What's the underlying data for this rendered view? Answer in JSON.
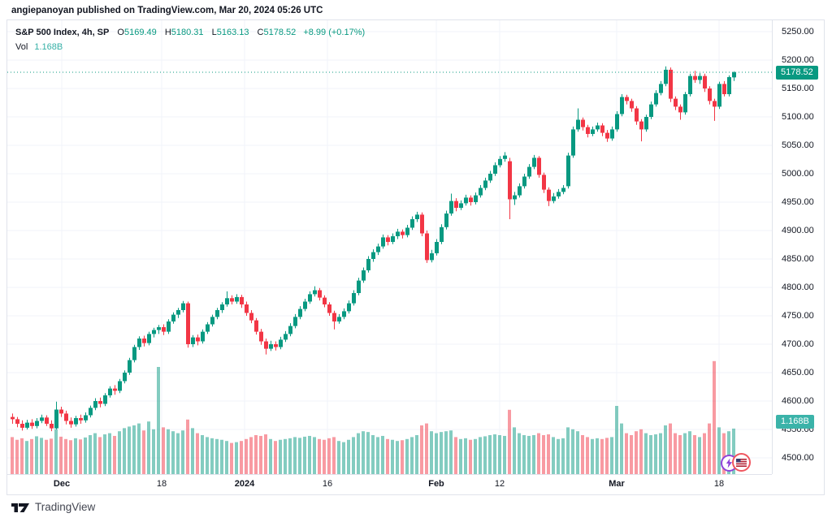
{
  "attribution": "angiepanoyan published on TradingView.com, Mar 20, 2024 05:26 UTC",
  "legend": {
    "title": "S&P 500 Index, 4h, SP",
    "o_label": "O",
    "o_value": "5169.49",
    "h_label": "H",
    "h_value": "5180.31",
    "l_label": "L",
    "l_value": "5163.13",
    "c_label": "C",
    "c_value": "5178.52",
    "change": "+8.99 (+0.17%)",
    "vol_label": "Vol",
    "vol_value": "1.168B"
  },
  "badges": {
    "last_price": "5178.52",
    "volume": "1.168B"
  },
  "price_axis_ticks": [
    {
      "label": "5250.00",
      "value": 5250
    },
    {
      "label": "5200.00",
      "value": 5200
    },
    {
      "label": "5150.00",
      "value": 5150
    },
    {
      "label": "5100.00",
      "value": 5100
    },
    {
      "label": "5050.00",
      "value": 5050
    },
    {
      "label": "5000.00",
      "value": 5000
    },
    {
      "label": "4950.00",
      "value": 4950
    },
    {
      "label": "4900.00",
      "value": 4900
    },
    {
      "label": "4850.00",
      "value": 4850
    },
    {
      "label": "4800.00",
      "value": 4800
    },
    {
      "label": "4750.00",
      "value": 4750
    },
    {
      "label": "4700.00",
      "value": 4700
    },
    {
      "label": "4650.00",
      "value": 4650
    },
    {
      "label": "4600.00",
      "value": 4600
    },
    {
      "label": "4550.00",
      "value": 4550
    },
    {
      "label": "4500.00",
      "value": 4500
    }
  ],
  "time_axis_ticks": [
    {
      "label": "Dec",
      "x": 75,
      "bold": true
    },
    {
      "label": "18",
      "x": 198,
      "bold": false
    },
    {
      "label": "2024",
      "x": 300,
      "bold": true
    },
    {
      "label": "16",
      "x": 402,
      "bold": false
    },
    {
      "label": "Feb",
      "x": 536,
      "bold": true
    },
    {
      "label": "12",
      "x": 614,
      "bold": false
    },
    {
      "label": "Mar",
      "x": 758,
      "bold": true
    },
    {
      "label": "18",
      "x": 884,
      "bold": false
    }
  ],
  "branding": {
    "logo_text": "TradingView"
  },
  "event_markers": [
    {
      "id": "idea-lightning",
      "color": "#8e44d8"
    },
    {
      "id": "us-economic-event",
      "color": "#f0565f"
    }
  ],
  "colors": {
    "up": "#089981",
    "down": "#f23645",
    "vol_up": "rgba(8,153,129,0.5)",
    "vol_down": "rgba(242,54,69,0.5)",
    "grid": "#f0f3fa",
    "border": "#e0e3eb",
    "text": "#131722",
    "vol_accent": "#35b0a6",
    "price_badge": "#089981",
    "vol_badge": "#3bb3a9",
    "last_price_line": "#089981"
  },
  "chart_data": {
    "type": "candlestick+volume",
    "symbol": "S&P 500 Index",
    "interval": "4h",
    "exchange": "SP",
    "title": "S&P 500 Index, 4h, SP",
    "x_range": "late Nov 2023 - Mar 19 2024",
    "price_axis_range": [
      4470,
      5265
    ],
    "last_close": 5178.52,
    "last_volume_b": 1.168,
    "grid": true,
    "candles_format": [
      "open",
      "high",
      "low",
      "close",
      "volume_billions"
    ],
    "candles": [
      [
        4572,
        4578,
        4560,
        4568,
        0.95
      ],
      [
        4568,
        4572,
        4554,
        4560,
        0.88
      ],
      [
        4560,
        4566,
        4548,
        4553,
        0.92
      ],
      [
        4553,
        4567,
        4550,
        4562,
        0.85
      ],
      [
        4562,
        4568,
        4551,
        4556,
        0.9
      ],
      [
        4556,
        4570,
        4552,
        4565,
        0.97
      ],
      [
        4565,
        4576,
        4561,
        4571,
        0.93
      ],
      [
        4571,
        4575,
        4556,
        4560,
        0.88
      ],
      [
        4560,
        4566,
        4547,
        4552,
        0.91
      ],
      [
        4552,
        4599,
        4550,
        4585,
        1.15
      ],
      [
        4585,
        4590,
        4572,
        4578,
        0.96
      ],
      [
        4578,
        4583,
        4559,
        4565,
        0.9
      ],
      [
        4565,
        4571,
        4553,
        4559,
        0.87
      ],
      [
        4559,
        4574,
        4555,
        4570,
        0.92
      ],
      [
        4570,
        4576,
        4560,
        4566,
        0.89
      ],
      [
        4566,
        4580,
        4562,
        4575,
        0.94
      ],
      [
        4575,
        4592,
        4571,
        4588,
        1.0
      ],
      [
        4588,
        4605,
        4584,
        4600,
        1.05
      ],
      [
        4600,
        4606,
        4589,
        4595,
        0.95
      ],
      [
        4595,
        4614,
        4591,
        4610,
        1.02
      ],
      [
        4610,
        4626,
        4606,
        4622,
        1.05
      ],
      [
        4622,
        4628,
        4611,
        4618,
        0.98
      ],
      [
        4618,
        4639,
        4614,
        4635,
        1.1
      ],
      [
        4635,
        4654,
        4631,
        4650,
        1.18
      ],
      [
        4650,
        4676,
        4646,
        4672,
        1.22
      ],
      [
        4672,
        4699,
        4668,
        4695,
        1.25
      ],
      [
        4695,
        4714,
        4690,
        4710,
        1.3
      ],
      [
        4710,
        4715,
        4696,
        4702,
        1.12
      ],
      [
        4702,
        4722,
        4698,
        4718,
        1.35
      ],
      [
        4718,
        4729,
        4712,
        4725,
        1.15
      ],
      [
        4725,
        4734,
        4718,
        4730,
        2.75
      ],
      [
        4730,
        4735,
        4716,
        4722,
        1.2
      ],
      [
        4722,
        4744,
        4718,
        4740,
        1.15
      ],
      [
        4740,
        4756,
        4736,
        4752,
        1.1
      ],
      [
        4752,
        4764,
        4746,
        4760,
        1.05
      ],
      [
        4760,
        4776,
        4756,
        4772,
        1.12
      ],
      [
        4772,
        4775,
        4694,
        4700,
        1.4
      ],
      [
        4700,
        4716,
        4695,
        4712,
        1.18
      ],
      [
        4712,
        4717,
        4698,
        4705,
        1.05
      ],
      [
        4705,
        4726,
        4701,
        4722,
        1.0
      ],
      [
        4722,
        4739,
        4718,
        4735,
        0.95
      ],
      [
        4735,
        4752,
        4731,
        4748,
        0.92
      ],
      [
        4748,
        4764,
        4744,
        4760,
        0.9
      ],
      [
        4760,
        4774,
        4755,
        4770,
        0.88
      ],
      [
        4770,
        4793,
        4766,
        4781,
        0.85
      ],
      [
        4781,
        4786,
        4770,
        4775,
        0.8
      ],
      [
        4775,
        4788,
        4771,
        4783,
        0.82
      ],
      [
        4783,
        4787,
        4764,
        4770,
        0.85
      ],
      [
        4770,
        4775,
        4750,
        4755,
        0.9
      ],
      [
        4755,
        4760,
        4737,
        4742,
        0.95
      ],
      [
        4742,
        4746,
        4717,
        4722,
        1.0
      ],
      [
        4722,
        4727,
        4699,
        4705,
        0.98
      ],
      [
        4705,
        4710,
        4682,
        4692,
        1.02
      ],
      [
        4692,
        4706,
        4688,
        4700,
        0.9
      ],
      [
        4700,
        4705,
        4689,
        4695,
        0.85
      ],
      [
        4695,
        4713,
        4691,
        4708,
        0.88
      ],
      [
        4708,
        4723,
        4704,
        4718,
        0.9
      ],
      [
        4718,
        4737,
        4714,
        4732,
        0.92
      ],
      [
        4732,
        4753,
        4728,
        4748,
        0.95
      ],
      [
        4748,
        4767,
        4744,
        4762,
        0.93
      ],
      [
        4762,
        4780,
        4758,
        4775,
        0.96
      ],
      [
        4775,
        4793,
        4771,
        4788,
        0.98
      ],
      [
        4788,
        4802,
        4784,
        4795,
        0.95
      ],
      [
        4795,
        4799,
        4777,
        4782,
        0.9
      ],
      [
        4782,
        4786,
        4765,
        4770,
        0.88
      ],
      [
        4770,
        4774,
        4750,
        4755,
        0.92
      ],
      [
        4755,
        4759,
        4726,
        4740,
        0.95
      ],
      [
        4740,
        4753,
        4736,
        4748,
        0.85
      ],
      [
        4748,
        4763,
        4744,
        4758,
        0.82
      ],
      [
        4758,
        4777,
        4754,
        4772,
        0.88
      ],
      [
        4772,
        4795,
        4768,
        4790,
        0.95
      ],
      [
        4790,
        4817,
        4786,
        4812,
        1.05
      ],
      [
        4812,
        4835,
        4808,
        4830,
        1.1
      ],
      [
        4830,
        4855,
        4826,
        4850,
        1.08
      ],
      [
        4850,
        4867,
        4845,
        4862,
        1.0
      ],
      [
        4862,
        4877,
        4857,
        4872,
        0.95
      ],
      [
        4872,
        4893,
        4868,
        4888,
        0.98
      ],
      [
        4888,
        4892,
        4874,
        4880,
        0.9
      ],
      [
        4880,
        4895,
        4876,
        4890,
        0.88
      ],
      [
        4890,
        4903,
        4885,
        4898,
        0.85
      ],
      [
        4898,
        4902,
        4886,
        4892,
        0.87
      ],
      [
        4892,
        4910,
        4888,
        4905,
        0.9
      ],
      [
        4905,
        4925,
        4901,
        4920,
        0.95
      ],
      [
        4920,
        4933,
        4915,
        4928,
        1.0
      ],
      [
        4928,
        4932,
        4890,
        4895,
        1.25
      ],
      [
        4895,
        4900,
        4843,
        4848,
        1.3
      ],
      [
        4848,
        4866,
        4844,
        4860,
        1.1
      ],
      [
        4860,
        4885,
        4856,
        4880,
        1.05
      ],
      [
        4880,
        4911,
        4876,
        4906,
        1.08
      ],
      [
        4906,
        4935,
        4902,
        4930,
        1.1
      ],
      [
        4930,
        4965,
        4926,
        4952,
        1.12
      ],
      [
        4952,
        4957,
        4934,
        4940,
        0.95
      ],
      [
        4940,
        4953,
        4936,
        4948,
        0.9
      ],
      [
        4948,
        4963,
        4944,
        4958,
        0.92
      ],
      [
        4958,
        4962,
        4944,
        4950,
        0.88
      ],
      [
        4950,
        4967,
        4946,
        4962,
        0.9
      ],
      [
        4962,
        4980,
        4958,
        4975,
        0.95
      ],
      [
        4975,
        4993,
        4971,
        4988,
        0.97
      ],
      [
        4988,
        5005,
        4984,
        5000,
        1.0
      ],
      [
        5000,
        5020,
        4996,
        5015,
        1.02
      ],
      [
        5015,
        5031,
        5011,
        5026,
        1.0
      ],
      [
        5026,
        5038,
        5021,
        5032,
        0.98
      ],
      [
        5022,
        5028,
        4920,
        4955,
        1.65
      ],
      [
        4955,
        4968,
        4945,
        4962,
        1.2
      ],
      [
        4962,
        4983,
        4958,
        4978,
        1.05
      ],
      [
        4978,
        5000,
        4974,
        4995,
        1.0
      ],
      [
        4995,
        5017,
        4991,
        5012,
        0.98
      ],
      [
        5012,
        5033,
        5008,
        5028,
        1.0
      ],
      [
        5028,
        5031,
        4993,
        4998,
        1.05
      ],
      [
        4998,
        5002,
        4966,
        4972,
        1.0
      ],
      [
        4972,
        4976,
        4943,
        4952,
        1.02
      ],
      [
        4952,
        4966,
        4948,
        4960,
        0.95
      ],
      [
        4960,
        4973,
        4956,
        4968,
        0.9
      ],
      [
        4968,
        4980,
        4964,
        4975,
        0.92
      ],
      [
        4978,
        5037,
        4974,
        5032,
        1.2
      ],
      [
        5032,
        5083,
        5028,
        5078,
        1.15
      ],
      [
        5078,
        5115,
        5074,
        5095,
        1.1
      ],
      [
        5095,
        5099,
        5076,
        5082,
        1.0
      ],
      [
        5082,
        5086,
        5064,
        5070,
        0.95
      ],
      [
        5070,
        5083,
        5066,
        5078,
        0.9
      ],
      [
        5078,
        5090,
        5074,
        5085,
        0.92
      ],
      [
        5085,
        5089,
        5066,
        5072,
        0.9
      ],
      [
        5072,
        5077,
        5056,
        5062,
        0.93
      ],
      [
        5062,
        5083,
        5058,
        5078,
        0.95
      ],
      [
        5078,
        5110,
        5074,
        5105,
        1.75
      ],
      [
        5105,
        5140,
        5101,
        5135,
        1.3
      ],
      [
        5135,
        5139,
        5122,
        5128,
        1.05
      ],
      [
        5128,
        5132,
        5109,
        5115,
        1.0
      ],
      [
        5115,
        5119,
        5086,
        5092,
        1.1
      ],
      [
        5092,
        5096,
        5057,
        5078,
        1.15
      ],
      [
        5078,
        5104,
        5074,
        5100,
        1.05
      ],
      [
        5100,
        5127,
        5096,
        5122,
        1.0
      ],
      [
        5122,
        5147,
        5118,
        5142,
        1.02
      ],
      [
        5142,
        5163,
        5138,
        5158,
        1.05
      ],
      [
        5158,
        5189,
        5154,
        5183,
        1.25
      ],
      [
        5183,
        5187,
        5126,
        5132,
        1.3
      ],
      [
        5132,
        5136,
        5112,
        5118,
        1.05
      ],
      [
        5118,
        5122,
        5095,
        5108,
        1.0
      ],
      [
        5108,
        5144,
        5104,
        5140,
        1.05
      ],
      [
        5140,
        5176,
        5136,
        5172,
        1.1
      ],
      [
        5172,
        5181,
        5160,
        5165,
        1.0
      ],
      [
        5165,
        5177,
        5158,
        5172,
        0.95
      ],
      [
        5172,
        5176,
        5144,
        5150,
        1.05
      ],
      [
        5150,
        5154,
        5122,
        5128,
        1.3
      ],
      [
        5128,
        5132,
        5093,
        5118,
        2.9
      ],
      [
        5118,
        5162,
        5114,
        5158,
        1.2
      ],
      [
        5158,
        5163,
        5136,
        5140,
        1.05
      ],
      [
        5140,
        5173,
        5136,
        5170,
        1.1
      ],
      [
        5169.49,
        5180.31,
        5163.13,
        5178.52,
        1.168
      ]
    ]
  }
}
